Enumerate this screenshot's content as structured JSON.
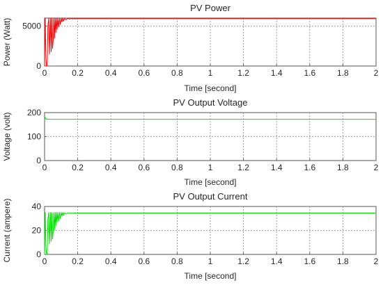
{
  "chart_data": [
    {
      "type": "line",
      "title": "PV  Power",
      "xlabel": "Time [second]",
      "ylabel": "Power (Watt)",
      "xlim": [
        0,
        2
      ],
      "ylim": [
        0,
        6000
      ],
      "xticks": [
        "0",
        "0.2",
        "0.4",
        "0.6",
        "0.8",
        "1",
        "1.2",
        "1.4",
        "1.6",
        "1.8",
        "2"
      ],
      "yticks": [
        "0",
        "5000"
      ],
      "grid": true,
      "color": "#ff0000",
      "series": [
        {
          "x": [
            0,
            0.004,
            0.008,
            0.012,
            0.016,
            0.02,
            0.025,
            0.03,
            0.035,
            0.04,
            0.044,
            0.048,
            0.052,
            0.056,
            0.06,
            0.064,
            0.068,
            0.072,
            0.076,
            0.08,
            0.085,
            0.09,
            0.095,
            0.1,
            0.105,
            0.11,
            0.115,
            0.12,
            0.13,
            0.14,
            0.15,
            0.16,
            0.17,
            0.18,
            0.19,
            0.2,
            2.0
          ],
          "y": [
            0,
            6000,
            1000,
            0,
            0,
            5000,
            6000,
            1500,
            6000,
            1800,
            6000,
            2200,
            3200,
            6000,
            3500,
            6000,
            4200,
            6000,
            4600,
            6000,
            4900,
            6000,
            5200,
            6000,
            5500,
            6000,
            5600,
            5950,
            5800,
            5950,
            5880,
            5930,
            5900,
            5920,
            5910,
            5920,
            5920
          ]
        }
      ]
    },
    {
      "type": "line",
      "title": "PV Output Voltage",
      "xlabel": "Time [second]",
      "ylabel": "Voltage (volt)",
      "xlim": [
        0,
        2
      ],
      "ylim": [
        0,
        200
      ],
      "xticks": [
        "0",
        "0.2",
        "0.4",
        "0.6",
        "0.8",
        "1",
        "1.2",
        "1.4",
        "1.6",
        "1.8",
        "2"
      ],
      "yticks": [
        "0",
        "100",
        "200"
      ],
      "grid": true,
      "color": "#00e000",
      "series": [
        {
          "x": [
            0,
            0.003,
            0.006,
            0.01,
            0.015,
            0.02,
            0.03,
            0.04,
            0.06,
            2.0
          ],
          "y": [
            170,
            180,
            176,
            172,
            174,
            172,
            173,
            172,
            172,
            172
          ]
        }
      ]
    },
    {
      "type": "line",
      "title": "PV Output Current",
      "xlabel": "Time [second]",
      "ylabel": "Current (ampere)",
      "xlim": [
        0,
        2
      ],
      "ylim": [
        0,
        40
      ],
      "xticks": [
        "0",
        "0.2",
        "0.4",
        "0.6",
        "0.8",
        "1",
        "1.2",
        "1.4",
        "1.6",
        "1.8",
        "2"
      ],
      "yticks": [
        "0",
        "20",
        "40"
      ],
      "grid": true,
      "color": "#00e000",
      "series": [
        {
          "x": [
            0,
            0.004,
            0.008,
            0.012,
            0.016,
            0.02,
            0.025,
            0.03,
            0.035,
            0.04,
            0.044,
            0.048,
            0.052,
            0.056,
            0.06,
            0.064,
            0.068,
            0.072,
            0.076,
            0.08,
            0.085,
            0.09,
            0.095,
            0.1,
            0.105,
            0.11,
            0.115,
            0.12,
            0.13,
            0.14,
            0.15,
            0.16,
            0.17,
            0.18,
            0.19,
            0.2,
            2.0
          ],
          "y": [
            0,
            35,
            6,
            0,
            0,
            29,
            35,
            9,
            35,
            11,
            35,
            13,
            19,
            35,
            20,
            35,
            24,
            35,
            27,
            35,
            28,
            35,
            30,
            35,
            32,
            35,
            32.5,
            34.8,
            33.8,
            34.8,
            34.3,
            34.6,
            34.4,
            34.5,
            34.5,
            34.5,
            34.5
          ]
        }
      ]
    }
  ]
}
